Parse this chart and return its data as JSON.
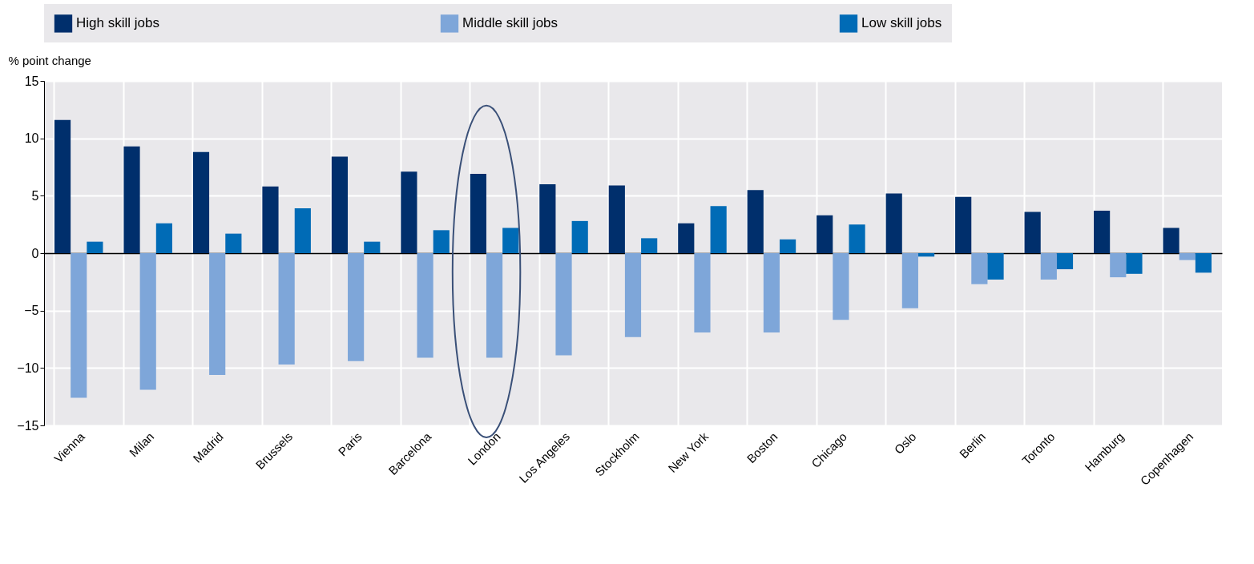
{
  "chart_data": {
    "type": "bar",
    "ylabel": "% point change",
    "categories": [
      "Vienna",
      "Milan",
      "Madrid",
      "Brussels",
      "Paris",
      "Barcelona",
      "London",
      "Los Angeles",
      "Stockholm",
      "New York",
      "Boston",
      "Chicago",
      "Oslo",
      "Berlin",
      "Toronto",
      "Hamburg",
      "Copenhagen"
    ],
    "series": [
      {
        "name": "High skill jobs",
        "color": "#002f6c",
        "values": [
          11.6,
          9.3,
          8.8,
          5.8,
          8.4,
          7.1,
          6.9,
          6.0,
          5.9,
          2.6,
          5.5,
          3.3,
          5.2,
          4.9,
          3.6,
          3.7,
          2.2
        ]
      },
      {
        "name": "Middle skill jobs",
        "color": "#7ea6d9",
        "values": [
          -12.6,
          -11.9,
          -10.6,
          -9.7,
          -9.4,
          -9.1,
          -9.1,
          -8.9,
          -7.3,
          -6.9,
          -6.9,
          -5.8,
          -4.8,
          -2.7,
          -2.3,
          -2.1,
          -0.6
        ]
      },
      {
        "name": "Low skill jobs",
        "color": "#006bb6",
        "values": [
          1.0,
          2.6,
          1.7,
          3.9,
          1.0,
          2.0,
          2.2,
          2.8,
          1.3,
          4.1,
          1.2,
          2.5,
          -0.3,
          -2.3,
          -1.4,
          -1.8,
          -1.7
        ]
      }
    ],
    "ylim": [
      -15,
      15
    ],
    "yticks": [
      -15,
      -10,
      -5,
      0,
      5,
      10,
      15
    ],
    "grid": true,
    "legend": "top"
  }
}
